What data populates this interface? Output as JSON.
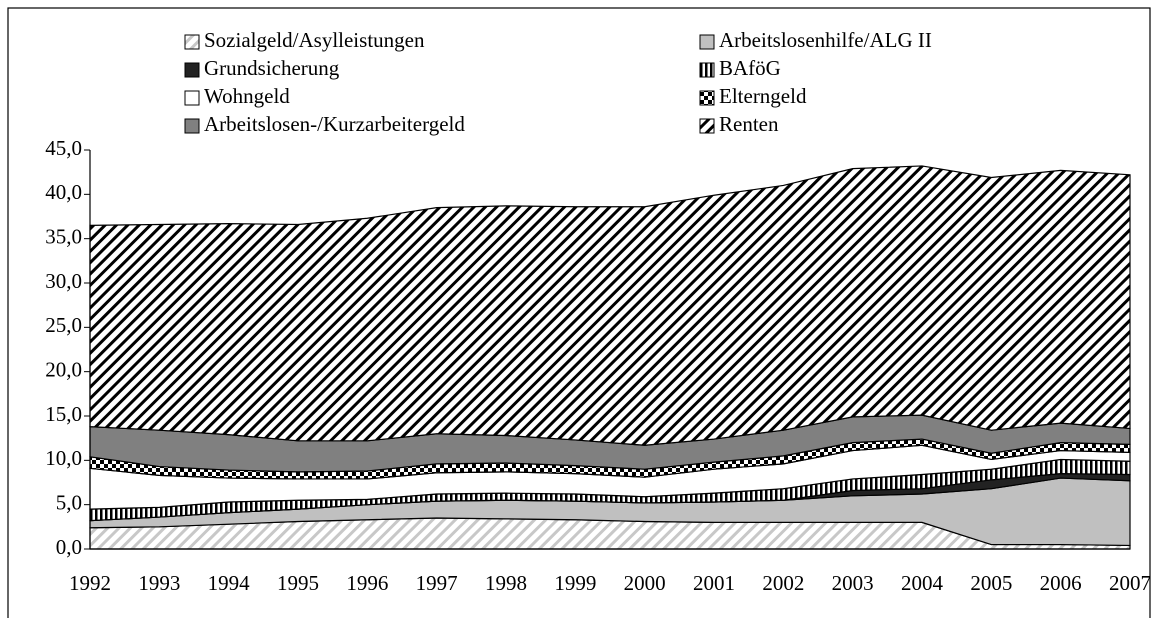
{
  "chart_data": {
    "type": "stacked-area",
    "categories": [
      "1992",
      "1993",
      "1994",
      "1995",
      "1996",
      "1997",
      "1998",
      "1999",
      "2000",
      "2001",
      "2002",
      "2003",
      "2004",
      "2005",
      "2006",
      "2007"
    ],
    "ylim": [
      0,
      45
    ],
    "yticks": [
      {
        "value": 0,
        "label": "0,0"
      },
      {
        "value": 5,
        "label": "5,0"
      },
      {
        "value": 10,
        "label": "10,0"
      },
      {
        "value": 15,
        "label": "15,0"
      },
      {
        "value": 20,
        "label": "20,0"
      },
      {
        "value": 25,
        "label": "25,0"
      },
      {
        "value": 30,
        "label": "30,0"
      },
      {
        "value": 35,
        "label": "35,0"
      },
      {
        "value": 40,
        "label": "40,0"
      },
      {
        "value": 45,
        "label": "45,0"
      }
    ],
    "series": [
      {
        "name": "Sozialgeld/Asylleistungen",
        "color": "#c8c8c8",
        "pattern": "light-diagonal",
        "values": [
          2.4,
          2.5,
          2.8,
          3.1,
          3.3,
          3.5,
          3.4,
          3.3,
          3.1,
          3.0,
          3.0,
          3.0,
          3.0,
          0.5,
          0.5,
          0.4
        ]
      },
      {
        "name": "Arbeitslosenhilfe/ALG II",
        "color": "#c0c0c0",
        "pattern": "solid",
        "values": [
          0.8,
          1.1,
          1.3,
          1.4,
          1.7,
          1.9,
          2.1,
          2.1,
          2.1,
          2.3,
          2.5,
          3.0,
          3.2,
          6.3,
          7.5,
          7.3
        ]
      },
      {
        "name": "Grundsicherung",
        "color": "#222222",
        "pattern": "solid",
        "values": [
          0,
          0,
          0,
          0,
          0,
          0,
          0,
          0,
          0,
          0,
          0,
          0.6,
          0.6,
          1.0,
          0.5,
          0.7
        ]
      },
      {
        "name": "BAföG",
        "color": "#000000",
        "pattern": "vertical",
        "values": [
          1.3,
          1.1,
          1.2,
          1.0,
          0.6,
          0.8,
          0.8,
          0.8,
          0.7,
          1.0,
          1.3,
          1.3,
          1.6,
          1.2,
          1.6,
          1.5
        ]
      },
      {
        "name": "Wohngeld",
        "color": "#ffffff",
        "pattern": "solid",
        "values": [
          4.6,
          3.6,
          2.7,
          2.4,
          2.3,
          2.4,
          2.4,
          2.3,
          2.2,
          2.7,
          2.8,
          3.2,
          3.3,
          1.1,
          1.0,
          1.0
        ]
      },
      {
        "name": "Elterngeld",
        "color": "#000000",
        "pattern": "checker",
        "values": [
          1.3,
          1.0,
          0.9,
          0.8,
          0.9,
          1.0,
          1.0,
          0.9,
          0.9,
          0.8,
          0.9,
          0.9,
          0.7,
          0.7,
          0.9,
          0.9
        ]
      },
      {
        "name": "Arbeitslosen-/Kurzarbeitergeld",
        "color": "#808080",
        "pattern": "solid",
        "values": [
          3.4,
          4.1,
          4.0,
          3.5,
          3.4,
          3.4,
          3.1,
          2.9,
          2.7,
          2.6,
          2.9,
          2.9,
          2.7,
          2.6,
          2.2,
          1.8
        ]
      },
      {
        "name": "Renten",
        "color": "#000000",
        "pattern": "diagonal",
        "values": [
          22.7,
          23.2,
          23.8,
          24.4,
          25.1,
          25.5,
          25.9,
          26.3,
          26.9,
          27.5,
          27.6,
          28.0,
          28.1,
          28.5,
          28.5,
          28.6
        ]
      }
    ]
  }
}
